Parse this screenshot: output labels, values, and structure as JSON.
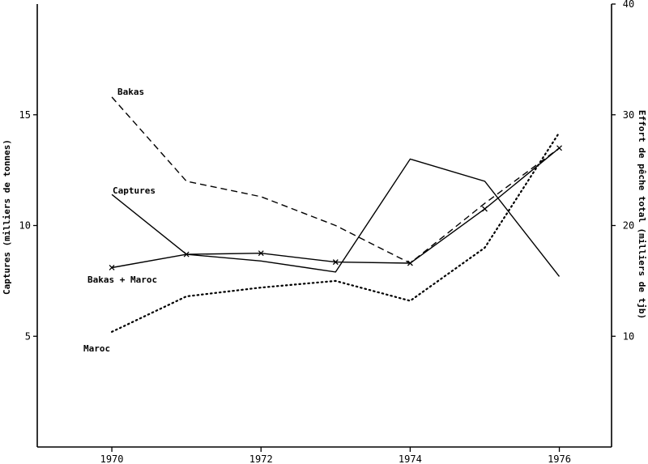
{
  "chart_data": {
    "type": "line",
    "x": [
      1970,
      1971,
      1972,
      1973,
      1974,
      1975,
      1976
    ],
    "xticks": [
      1970,
      1972,
      1974,
      1976
    ],
    "xlim": [
      1969,
      1976.7
    ],
    "ylabel": "Captures (milliers de tonnes)",
    "ylim": [
      0,
      20
    ],
    "yticks": [
      5,
      10,
      15
    ],
    "y2label": "Effort de pêche total (milliers de tjb)",
    "y2lim": [
      0,
      40
    ],
    "y2ticks": [
      10,
      20,
      30,
      40
    ],
    "series": [
      {
        "name": "Captures",
        "axis": "left",
        "style": "solid",
        "marker": "none",
        "x": [
          1970,
          1971,
          1972,
          1973,
          1974,
          1975,
          1976
        ],
        "values": [
          11.4,
          8.7,
          8.4,
          7.9,
          13.0,
          12.0,
          7.7
        ]
      },
      {
        "name": "Bakas",
        "axis": "right",
        "style": "dashed",
        "marker": "none",
        "x": [
          1970,
          1971,
          1972,
          1973,
          1974,
          1975,
          1976
        ],
        "values": [
          31.6,
          24.0,
          22.6,
          20.0,
          16.6,
          22.0,
          27.0
        ]
      },
      {
        "name": "Bakas + Maroc",
        "axis": "right",
        "style": "solid",
        "marker": "x",
        "x": [
          1970,
          1971,
          1972,
          1973,
          1974,
          1975,
          1976
        ],
        "values": [
          16.2,
          17.4,
          17.5,
          16.7,
          16.6,
          21.5,
          27.0
        ]
      },
      {
        "name": "Maroc",
        "axis": "right",
        "style": "dotted",
        "marker": "none",
        "x": [
          1970,
          1971,
          1972,
          1973,
          1974,
          1975,
          1976
        ],
        "values": [
          10.4,
          13.6,
          14.4,
          15.0,
          13.2,
          18.0,
          28.4
        ]
      }
    ]
  }
}
